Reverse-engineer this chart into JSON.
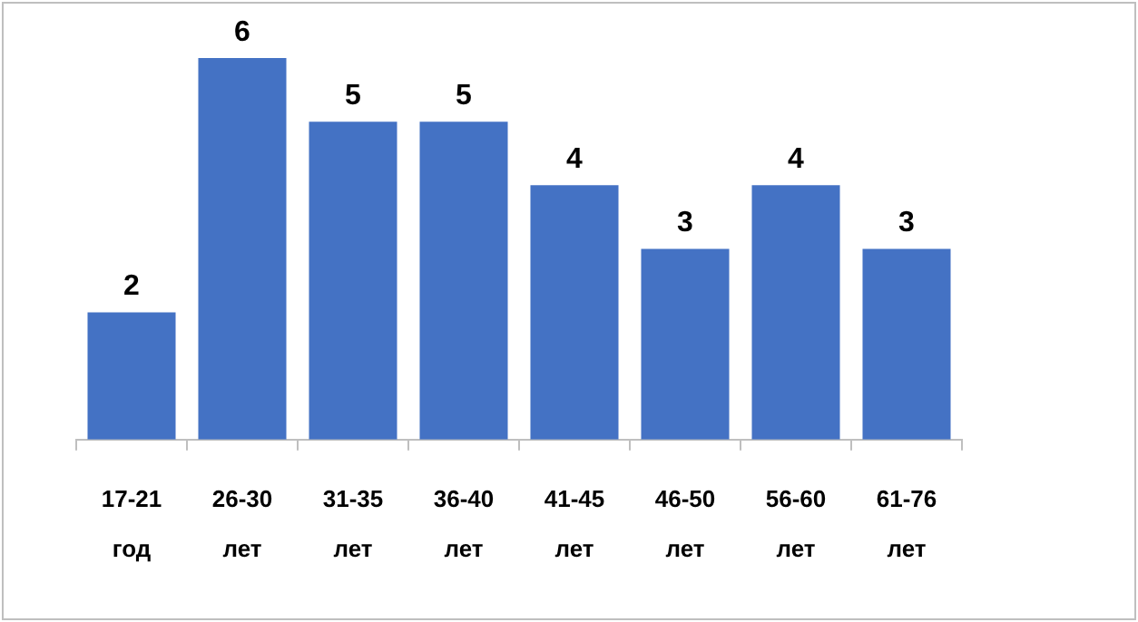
{
  "chart_data": {
    "type": "bar",
    "categories": [
      "17-21 год",
      "26-30 лет",
      "31-35 лет",
      "36-40 лет",
      "41-45 лет",
      "46-50 лет",
      "56-60 лет",
      "61-76 лет"
    ],
    "values": [
      2,
      6,
      5,
      5,
      4,
      3,
      4,
      3
    ],
    "color": "#4472c4",
    "data_labels": true,
    "grid": false,
    "legend": false,
    "tick_labels": "x"
  }
}
